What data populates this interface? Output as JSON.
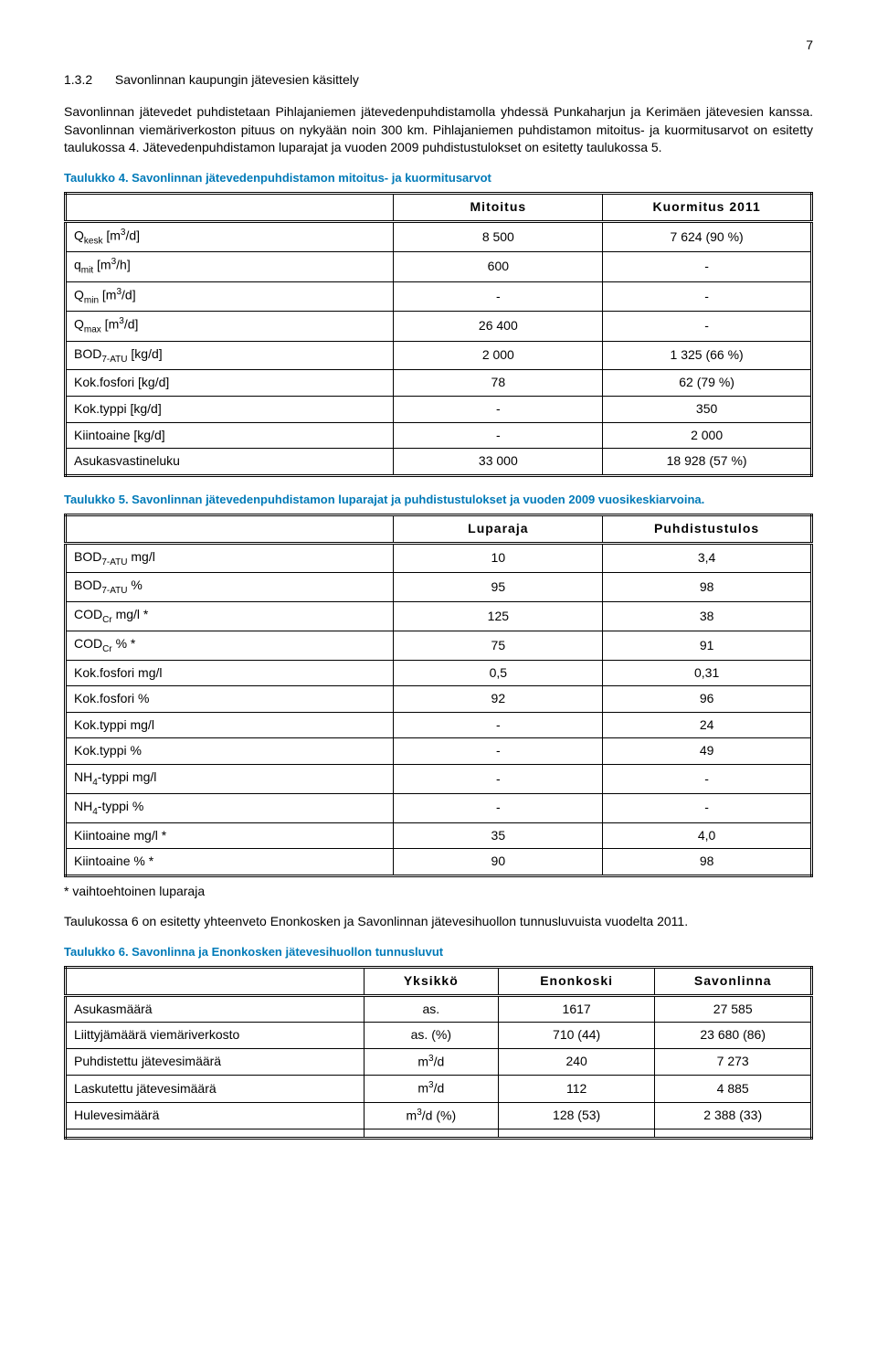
{
  "page_number": "7",
  "heading": {
    "num": "1.3.2",
    "title": "Savonlinnan kaupungin jätevesien käsittely"
  },
  "para1": "Savonlinnan jätevedet puhdistetaan Pihlajaniemen jätevedenpuhdistamolla yhdessä Punkaharjun ja Kerimäen jätevesien kanssa. Savonlinnan viemäriverkoston pituus on nykyään noin 300 km. Pihlajaniemen puhdistamon mitoitus- ja kuormitusarvot on esitetty taulukossa 4. Jätevedenpuhdistamon luparajat ja vuoden 2009 puhdistustulokset on esitetty taulukossa 5.",
  "table4": {
    "caption": "Taulukko 4. Savonlinnan jätevedenpuhdistamon mitoitus- ja kuormitusarvot",
    "headers": {
      "c1": "",
      "c2": "Mitoitus",
      "c3": "Kuormitus 2011"
    },
    "rows": [
      {
        "label_html": "Q<sub class='sub'>kesk</sub> [m<sup class='sup'>3</sup>/d]",
        "v1": "8 500",
        "v2": "7 624 (90 %)"
      },
      {
        "label_html": "q<sub class='sub'>mit</sub> [m<sup class='sup'>3</sup>/h]",
        "v1": "600",
        "v2": "-"
      },
      {
        "label_html": "Q<sub class='sub'>min</sub> [m<sup class='sup'>3</sup>/d]",
        "v1": "-",
        "v2": "-"
      },
      {
        "label_html": "Q<sub class='sub'>max</sub> [m<sup class='sup'>3</sup>/d]",
        "v1": "26 400",
        "v2": "-"
      },
      {
        "label_html": "BOD<sub class='sub'>7-ATU</sub> [kg/d]",
        "v1": "2 000",
        "v2": "1 325 (66 %)"
      },
      {
        "label_html": "Kok.fosfori [kg/d]",
        "v1": "78",
        "v2": "62 (79 %)"
      },
      {
        "label_html": "Kok.typpi [kg/d]",
        "v1": "-",
        "v2": "350"
      },
      {
        "label_html": "Kiintoaine [kg/d]",
        "v1": "-",
        "v2": "2 000"
      },
      {
        "label_html": "Asukasvastineluku",
        "v1": "33 000",
        "v2": "18 928 (57 %)"
      }
    ]
  },
  "table5": {
    "caption": "Taulukko 5. Savonlinnan jätevedenpuhdistamon luparajat ja puhdistustulokset ja vuoden 2009 vuosikeskiarvoina.",
    "headers": {
      "c1": "",
      "c2": "Luparaja",
      "c3": "Puhdistustulos"
    },
    "rows": [
      {
        "label_html": "BOD<sub class='sub'>7-ATU</sub> mg/l",
        "v1": "10",
        "v2": "3,4"
      },
      {
        "label_html": "BOD<sub class='sub'>7-ATU</sub> %",
        "v1": "95",
        "v2": "98"
      },
      {
        "label_html": "COD<sub class='sub'>Cr</sub> mg/l *",
        "v1": "125",
        "v2": "38"
      },
      {
        "label_html": "COD<sub class='sub'>Cr</sub> % *",
        "v1": "75",
        "v2": "91"
      },
      {
        "label_html": "Kok.fosfori mg/l",
        "v1": "0,5",
        "v2": "0,31"
      },
      {
        "label_html": "Kok.fosfori %",
        "v1": "92",
        "v2": "96"
      },
      {
        "label_html": "Kok.typpi mg/l",
        "v1": "-",
        "v2": "24"
      },
      {
        "label_html": "Kok.typpi %",
        "v1": "-",
        "v2": "49"
      },
      {
        "label_html": "NH<sub class='sub'>4</sub>-typpi mg/l",
        "v1": "-",
        "v2": "-"
      },
      {
        "label_html": "NH<sub class='sub'>4</sub>-typpi %",
        "v1": "-",
        "v2": "-"
      },
      {
        "label_html": "Kiintoaine mg/l *",
        "v1": "35",
        "v2": "4,0"
      },
      {
        "label_html": "Kiintoaine % *",
        "v1": "90",
        "v2": "98"
      }
    ],
    "footnote": "* vaihtoehtoinen luparaja"
  },
  "para2": "Taulukossa 6 on esitetty yhteenveto Enonkosken ja Savonlinnan jätevesihuollon tunnusluvuista vuodelta 2011.",
  "table6": {
    "caption": "Taulukko 6. Savonlinna ja Enonkosken jätevesihuollon tunnusluvut",
    "headers": {
      "c1": "",
      "c2": "Yksikkö",
      "c3": "Enonkoski",
      "c4": "Savonlinna"
    },
    "rows": [
      {
        "label_html": "Asukasmäärä",
        "u": "as.",
        "v1": "1617",
        "v2": "27 585"
      },
      {
        "label_html": "Liittyjämäärä viemäriverkosto",
        "u": "as. (%)",
        "v1": "710 (44)",
        "v2": "23 680 (86)"
      },
      {
        "label_html": "Puhdistettu jätevesimäärä",
        "u_html": "m<sup class='sup'>3</sup>/d",
        "v1": "240",
        "v2": "7 273"
      },
      {
        "label_html": "Laskutettu jätevesimäärä",
        "u_html": "m<sup class='sup'>3</sup>/d",
        "v1": "112",
        "v2": "4 885"
      },
      {
        "label_html": "Hulevesimäärä",
        "u_html": "m<sup class='sup'>3</sup>/d (%)",
        "v1": "128 (53)",
        "v2": "2 388 (33)"
      },
      {
        "label_html": "",
        "u": "",
        "v1": "",
        "v2": ""
      }
    ]
  },
  "colors": {
    "link_blue": "#007ab8",
    "text_black": "#000000",
    "background": "#ffffff"
  },
  "fonts": {
    "family": "Arial",
    "body_pt": 11,
    "caption_pt": 10
  }
}
